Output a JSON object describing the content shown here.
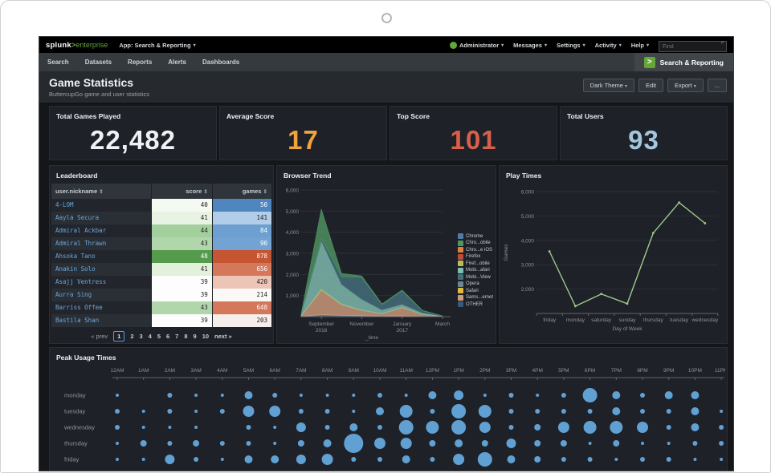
{
  "icons": {
    "caret": "▾",
    "search_glyph": "⌕",
    "sort_glyph": "⇕"
  },
  "topnav": {
    "logo": {
      "brand": "splunk",
      "gt": ">",
      "product": "enterprise"
    },
    "app_menu": "App: Search & Reporting",
    "menus": [
      "Administrator",
      "Messages",
      "Settings",
      "Activity",
      "Help"
    ],
    "find_placeholder": "Find"
  },
  "appbar": {
    "tabs": [
      "Search",
      "Datasets",
      "Reports",
      "Alerts",
      "Dashboards"
    ],
    "logo_glyph": ">",
    "app_label": "Search & Reporting"
  },
  "header": {
    "title": "Game Statistics",
    "subtitle": "ButtercupGo game and user statistics",
    "buttons": [
      {
        "label": "Dark Theme",
        "caret": true
      },
      {
        "label": "Edit",
        "caret": false
      },
      {
        "label": "Export",
        "caret": true
      },
      {
        "label": "...",
        "caret": false
      }
    ]
  },
  "kpis": [
    {
      "label": "Total Games Played",
      "value": "22,482",
      "color": "#eef2f4"
    },
    {
      "label": "Average Score",
      "value": "17",
      "color": "#f0a23c"
    },
    {
      "label": "Top Score",
      "value": "101",
      "color": "#d8604a"
    },
    {
      "label": "Total Users",
      "value": "93",
      "color": "#a3c6de"
    }
  ],
  "leaderboard": {
    "title": "Leaderboard",
    "columns": [
      "user.nickname",
      "score",
      "games"
    ],
    "rows": [
      {
        "name": "4-LOM",
        "score": "40",
        "games": "50",
        "score_bg": "#f4f9f2",
        "score_fg": "#222",
        "games_bg": "#4f86c0",
        "games_fg": "#fff"
      },
      {
        "name": "Aayla Secura",
        "score": "41",
        "games": "141",
        "score_bg": "#e9f3e4",
        "score_fg": "#222",
        "games_bg": "#b2cde7",
        "games_fg": "#222"
      },
      {
        "name": "Admiral Ackbar",
        "score": "44",
        "games": "84",
        "score_bg": "#a3cf9c",
        "score_fg": "#222",
        "games_bg": "#6d9fd0",
        "games_fg": "#fff"
      },
      {
        "name": "Admiral Thrawn",
        "score": "43",
        "games": "90",
        "score_bg": "#b2d6ab",
        "score_fg": "#222",
        "games_bg": "#73a3d3",
        "games_fg": "#fff"
      },
      {
        "name": "Ahsoka Tano",
        "score": "48",
        "games": "878",
        "score_bg": "#569b4d",
        "score_fg": "#fff",
        "games_bg": "#c65532",
        "games_fg": "#fff"
      },
      {
        "name": "Anakin Solo",
        "score": "41",
        "games": "656",
        "score_bg": "#e2f0dc",
        "score_fg": "#222",
        "games_bg": "#d4775a",
        "games_fg": "#fff"
      },
      {
        "name": "Asajj Ventress",
        "score": "39",
        "games": "420",
        "score_bg": "#fdfdfd",
        "score_fg": "#222",
        "games_bg": "#ecc5b6",
        "games_fg": "#222"
      },
      {
        "name": "Aurra Sing",
        "score": "39",
        "games": "214",
        "score_bg": "#fdfdfd",
        "score_fg": "#222",
        "games_bg": "#fbf9f8",
        "games_fg": "#222"
      },
      {
        "name": "Barriss Offee",
        "score": "43",
        "games": "648",
        "score_bg": "#b2d6ab",
        "score_fg": "#222",
        "games_bg": "#d4775a",
        "games_fg": "#fff"
      },
      {
        "name": "Bastila Shan",
        "score": "39",
        "games": "203",
        "score_bg": "#fdfdfd",
        "score_fg": "#222",
        "games_bg": "#f6efeb",
        "games_fg": "#222"
      }
    ],
    "pagination": {
      "prev": "« prev",
      "pages": [
        "1",
        "2",
        "3",
        "4",
        "5",
        "6",
        "7",
        "8",
        "9",
        "10"
      ],
      "current": "1",
      "next": "next »"
    }
  },
  "chart_data": [
    {
      "type": "area",
      "title": "Browser Trend",
      "stacked": true,
      "xlabel": "_time",
      "x": [
        "2016-08",
        "2016-09",
        "2016-10",
        "2016-11",
        "2016-12",
        "2017-01",
        "2017-02",
        "2017-03"
      ],
      "xticks": [
        {
          "index": 1,
          "lines": [
            "September",
            "2016"
          ]
        },
        {
          "index": 3,
          "lines": [
            "November"
          ]
        },
        {
          "index": 5,
          "lines": [
            "January",
            "2017"
          ]
        },
        {
          "index": 7,
          "lines": [
            "March"
          ]
        }
      ],
      "ylim": [
        0,
        6000
      ],
      "yticks": [
        1000,
        2000,
        3000,
        4000,
        5000,
        6000
      ],
      "series": [
        {
          "name": "OTHER",
          "color": "#3a5a78",
          "values": [
            10,
            60,
            40,
            30,
            20,
            25,
            10,
            5
          ]
        },
        {
          "name": "Opera",
          "color": "#6e8795",
          "values": [
            5,
            40,
            25,
            15,
            10,
            10,
            5,
            2
          ]
        },
        {
          "name": "Sams...ernet",
          "color": "#cf9b7e",
          "values": [
            20,
            1150,
            500,
            250,
            110,
            390,
            90,
            8
          ]
        },
        {
          "name": "Firef...obile",
          "color": "#b8bd58",
          "values": [
            5,
            60,
            30,
            15,
            8,
            10,
            5,
            2
          ]
        },
        {
          "name": "Mobi...afari",
          "color": "#82bdb1",
          "values": [
            60,
            2280,
            930,
            510,
            170,
            150,
            65,
            8
          ]
        },
        {
          "name": "Mobi...View",
          "color": "#44707c",
          "values": [
            20,
            110,
            370,
            1040,
            250,
            645,
            115,
            10
          ]
        },
        {
          "name": "Chro...obile",
          "color": "#4f9462",
          "values": [
            30,
            1400,
            150,
            70,
            35,
            30,
            15,
            4
          ]
        }
      ],
      "legend_position": "right",
      "legend": [
        {
          "label": "Chrome",
          "color": "#527ba5"
        },
        {
          "label": "Chro...obile",
          "color": "#4f9462"
        },
        {
          "label": "Chro...e iOS",
          "color": "#e0803c"
        },
        {
          "label": "Firefox",
          "color": "#bf4a3f"
        },
        {
          "label": "Firef...obile",
          "color": "#b8bd58"
        },
        {
          "label": "Mobi...afari",
          "color": "#82bdb1"
        },
        {
          "label": "Mobi...View",
          "color": "#44707c"
        },
        {
          "label": "Opera",
          "color": "#6e8795"
        },
        {
          "label": "Safari",
          "color": "#e3b83e"
        },
        {
          "label": "Sams...ernet",
          "color": "#cf9b7e"
        },
        {
          "label": "OTHER",
          "color": "#3a5a78"
        }
      ]
    },
    {
      "type": "line",
      "title": "Play Times",
      "xlabel": "Day of Week",
      "ylabel": "Games",
      "categories": [
        "friday",
        "monday",
        "saturday",
        "sunday",
        "thursday",
        "tuesday",
        "wednesday"
      ],
      "values": [
        3550,
        1300,
        1800,
        1400,
        4300,
        5550,
        4700
      ],
      "ylim": [
        1000,
        6000
      ],
      "yticks": [
        2000,
        3000,
        4000,
        5000,
        6000
      ],
      "grid": "on",
      "color": "#9fc98c"
    },
    {
      "type": "bubble",
      "title": "Peak Usage Times",
      "x_categories": [
        "12AM",
        "1AM",
        "2AM",
        "3AM",
        "4AM",
        "5AM",
        "6AM",
        "7AM",
        "8AM",
        "9AM",
        "10AM",
        "11AM",
        "12PM",
        "1PM",
        "2PM",
        "3PM",
        "4PM",
        "5PM",
        "6PM",
        "7PM",
        "8PM",
        "9PM",
        "10PM",
        "11PM"
      ],
      "y_categories": [
        "monday",
        "tuesday",
        "wednesday",
        "thursday",
        "friday"
      ],
      "sizes": [
        [
          2,
          0,
          3,
          2,
          2,
          5,
          3,
          2,
          2,
          2,
          3,
          2,
          5,
          6,
          2,
          3,
          2,
          3,
          9,
          5,
          3,
          5,
          5,
          0
        ],
        [
          3,
          2,
          3,
          2,
          3,
          7,
          7,
          3,
          3,
          2,
          5,
          8,
          3,
          9,
          8,
          3,
          3,
          3,
          3,
          5,
          3,
          3,
          5,
          2
        ],
        [
          3,
          2,
          2,
          2,
          0,
          3,
          2,
          6,
          3,
          5,
          3,
          9,
          8,
          9,
          7,
          3,
          4,
          7,
          8,
          8,
          7,
          3,
          5,
          3
        ],
        [
          2,
          4,
          3,
          4,
          3,
          3,
          2,
          4,
          5,
          12,
          7,
          7,
          4,
          5,
          4,
          6,
          4,
          4,
          2,
          4,
          2,
          2,
          3,
          3
        ],
        [
          2,
          2,
          6,
          3,
          2,
          5,
          5,
          6,
          7,
          3,
          3,
          5,
          3,
          7,
          9,
          5,
          4,
          3,
          3,
          2,
          3,
          3,
          2,
          2
        ]
      ],
      "size_unit": "bubble radius, relative games played",
      "color": "#64a8dc"
    }
  ]
}
